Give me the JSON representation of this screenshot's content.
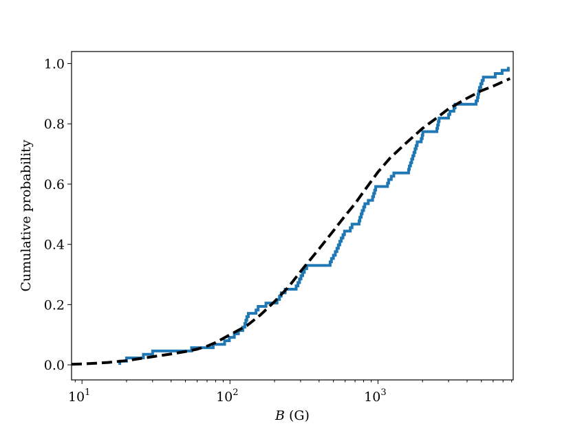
{
  "chart_data": {
    "type": "line",
    "xscale": "log",
    "xlim": [
      8.5,
      8200
    ],
    "ylim": [
      -0.05,
      1.04
    ],
    "xlabel": {
      "symbol": "B",
      "unit": "(G)"
    },
    "ylabel": "Cumulative probability",
    "x_ticks": [
      {
        "value": 10,
        "base": "10",
        "exp": "1"
      },
      {
        "value": 100,
        "base": "10",
        "exp": "2"
      },
      {
        "value": 1000,
        "base": "10",
        "exp": "3"
      }
    ],
    "y_ticks": [
      {
        "value": 0.0,
        "label": "0.0"
      },
      {
        "value": 0.2,
        "label": "0.2"
      },
      {
        "value": 0.4,
        "label": "0.4"
      },
      {
        "value": 0.6,
        "label": "0.6"
      },
      {
        "value": 0.8,
        "label": "0.8"
      },
      {
        "value": 1.0,
        "label": "1.0"
      }
    ],
    "grid": false,
    "legend": "none",
    "series": [
      {
        "style": "step",
        "color": "#1f77b4",
        "points": [
          [
            18,
            0.0
          ],
          [
            18,
            0.012
          ],
          [
            20,
            0.012
          ],
          [
            20,
            0.023
          ],
          [
            26,
            0.023
          ],
          [
            26,
            0.035
          ],
          [
            30,
            0.035
          ],
          [
            30,
            0.046
          ],
          [
            55,
            0.046
          ],
          [
            55,
            0.057
          ],
          [
            77,
            0.057
          ],
          [
            77,
            0.068
          ],
          [
            92,
            0.068
          ],
          [
            92,
            0.08
          ],
          [
            99,
            0.08
          ],
          [
            99,
            0.091
          ],
          [
            107,
            0.091
          ],
          [
            107,
            0.103
          ],
          [
            114,
            0.103
          ],
          [
            114,
            0.114
          ],
          [
            122,
            0.114
          ],
          [
            122,
            0.125
          ],
          [
            126,
            0.125
          ],
          [
            126,
            0.137
          ],
          [
            128,
            0.137
          ],
          [
            128,
            0.148
          ],
          [
            130,
            0.148
          ],
          [
            130,
            0.16
          ],
          [
            133,
            0.16
          ],
          [
            133,
            0.171
          ],
          [
            150,
            0.171
          ],
          [
            150,
            0.182
          ],
          [
            155,
            0.182
          ],
          [
            155,
            0.194
          ],
          [
            175,
            0.194
          ],
          [
            175,
            0.205
          ],
          [
            208,
            0.205
          ],
          [
            208,
            0.217
          ],
          [
            216,
            0.217
          ],
          [
            216,
            0.228
          ],
          [
            222,
            0.228
          ],
          [
            222,
            0.239
          ],
          [
            236,
            0.239
          ],
          [
            236,
            0.251
          ],
          [
            280,
            0.251
          ],
          [
            280,
            0.262
          ],
          [
            288,
            0.262
          ],
          [
            288,
            0.273
          ],
          [
            295,
            0.273
          ],
          [
            295,
            0.285
          ],
          [
            302,
            0.285
          ],
          [
            302,
            0.296
          ],
          [
            310,
            0.296
          ],
          [
            310,
            0.307
          ],
          [
            318,
            0.307
          ],
          [
            318,
            0.319
          ],
          [
            330,
            0.319
          ],
          [
            330,
            0.33
          ],
          [
            475,
            0.33
          ],
          [
            475,
            0.342
          ],
          [
            485,
            0.342
          ],
          [
            485,
            0.353
          ],
          [
            500,
            0.353
          ],
          [
            500,
            0.364
          ],
          [
            515,
            0.364
          ],
          [
            515,
            0.376
          ],
          [
            528,
            0.376
          ],
          [
            528,
            0.387
          ],
          [
            540,
            0.387
          ],
          [
            540,
            0.398
          ],
          [
            552,
            0.398
          ],
          [
            552,
            0.41
          ],
          [
            565,
            0.41
          ],
          [
            565,
            0.421
          ],
          [
            580,
            0.421
          ],
          [
            580,
            0.432
          ],
          [
            594,
            0.432
          ],
          [
            594,
            0.444
          ],
          [
            650,
            0.444
          ],
          [
            650,
            0.455
          ],
          [
            668,
            0.455
          ],
          [
            668,
            0.467
          ],
          [
            745,
            0.467
          ],
          [
            745,
            0.478
          ],
          [
            755,
            0.478
          ],
          [
            755,
            0.49
          ],
          [
            770,
            0.49
          ],
          [
            770,
            0.501
          ],
          [
            782,
            0.501
          ],
          [
            782,
            0.512
          ],
          [
            800,
            0.512
          ],
          [
            800,
            0.524
          ],
          [
            815,
            0.524
          ],
          [
            815,
            0.535
          ],
          [
            860,
            0.535
          ],
          [
            860,
            0.546
          ],
          [
            920,
            0.546
          ],
          [
            920,
            0.558
          ],
          [
            935,
            0.558
          ],
          [
            935,
            0.569
          ],
          [
            950,
            0.569
          ],
          [
            950,
            0.58
          ],
          [
            965,
            0.58
          ],
          [
            965,
            0.592
          ],
          [
            1160,
            0.592
          ],
          [
            1160,
            0.603
          ],
          [
            1180,
            0.603
          ],
          [
            1180,
            0.615
          ],
          [
            1230,
            0.615
          ],
          [
            1230,
            0.626
          ],
          [
            1280,
            0.626
          ],
          [
            1280,
            0.637
          ],
          [
            1610,
            0.637
          ],
          [
            1610,
            0.649
          ],
          [
            1630,
            0.649
          ],
          [
            1630,
            0.66
          ],
          [
            1660,
            0.66
          ],
          [
            1660,
            0.671
          ],
          [
            1690,
            0.671
          ],
          [
            1690,
            0.683
          ],
          [
            1720,
            0.683
          ],
          [
            1720,
            0.694
          ],
          [
            1750,
            0.694
          ],
          [
            1750,
            0.705
          ],
          [
            1780,
            0.705
          ],
          [
            1780,
            0.717
          ],
          [
            1810,
            0.717
          ],
          [
            1810,
            0.728
          ],
          [
            1840,
            0.728
          ],
          [
            1840,
            0.74
          ],
          [
            1960,
            0.74
          ],
          [
            1960,
            0.751
          ],
          [
            1990,
            0.751
          ],
          [
            1990,
            0.762
          ],
          [
            2010,
            0.762
          ],
          [
            2010,
            0.774
          ],
          [
            2500,
            0.774
          ],
          [
            2500,
            0.785
          ],
          [
            2530,
            0.785
          ],
          [
            2530,
            0.796
          ],
          [
            2560,
            0.796
          ],
          [
            2560,
            0.808
          ],
          [
            2590,
            0.808
          ],
          [
            2590,
            0.819
          ],
          [
            3000,
            0.819
          ],
          [
            3000,
            0.831
          ],
          [
            3060,
            0.831
          ],
          [
            3060,
            0.842
          ],
          [
            3260,
            0.842
          ],
          [
            3260,
            0.853
          ],
          [
            3320,
            0.853
          ],
          [
            3320,
            0.865
          ],
          [
            4600,
            0.865
          ],
          [
            4600,
            0.876
          ],
          [
            4700,
            0.876
          ],
          [
            4700,
            0.887
          ],
          [
            4750,
            0.887
          ],
          [
            4750,
            0.899
          ],
          [
            4800,
            0.899
          ],
          [
            4800,
            0.91
          ],
          [
            4850,
            0.91
          ],
          [
            4850,
            0.921
          ],
          [
            4950,
            0.921
          ],
          [
            4950,
            0.933
          ],
          [
            5050,
            0.933
          ],
          [
            5050,
            0.944
          ],
          [
            5150,
            0.944
          ],
          [
            5150,
            0.955
          ],
          [
            6200,
            0.955
          ],
          [
            6200,
            0.967
          ],
          [
            6900,
            0.967
          ],
          [
            6900,
            0.978
          ],
          [
            7600,
            0.978
          ],
          [
            7600,
            0.989
          ]
        ]
      },
      {
        "style": "dashed",
        "color": "#000000",
        "points": [
          [
            8.5,
            0.002
          ],
          [
            10,
            0.003
          ],
          [
            12,
            0.005
          ],
          [
            15,
            0.008
          ],
          [
            20,
            0.014
          ],
          [
            30,
            0.027
          ],
          [
            40,
            0.036
          ],
          [
            50,
            0.044
          ],
          [
            60,
            0.052
          ],
          [
            70,
            0.062
          ],
          [
            80,
            0.074
          ],
          [
            100,
            0.1
          ],
          [
            130,
            0.13
          ],
          [
            160,
            0.165
          ],
          [
            200,
            0.21
          ],
          [
            250,
            0.26
          ],
          [
            300,
            0.31
          ],
          [
            400,
            0.385
          ],
          [
            500,
            0.445
          ],
          [
            600,
            0.495
          ],
          [
            700,
            0.535
          ],
          [
            800,
            0.575
          ],
          [
            1000,
            0.64
          ],
          [
            1200,
            0.685
          ],
          [
            1500,
            0.73
          ],
          [
            2000,
            0.785
          ],
          [
            2500,
            0.82
          ],
          [
            3000,
            0.85
          ],
          [
            4000,
            0.885
          ],
          [
            5000,
            0.91
          ],
          [
            6000,
            0.925
          ],
          [
            7000,
            0.94
          ],
          [
            7800,
            0.95
          ]
        ]
      }
    ]
  }
}
